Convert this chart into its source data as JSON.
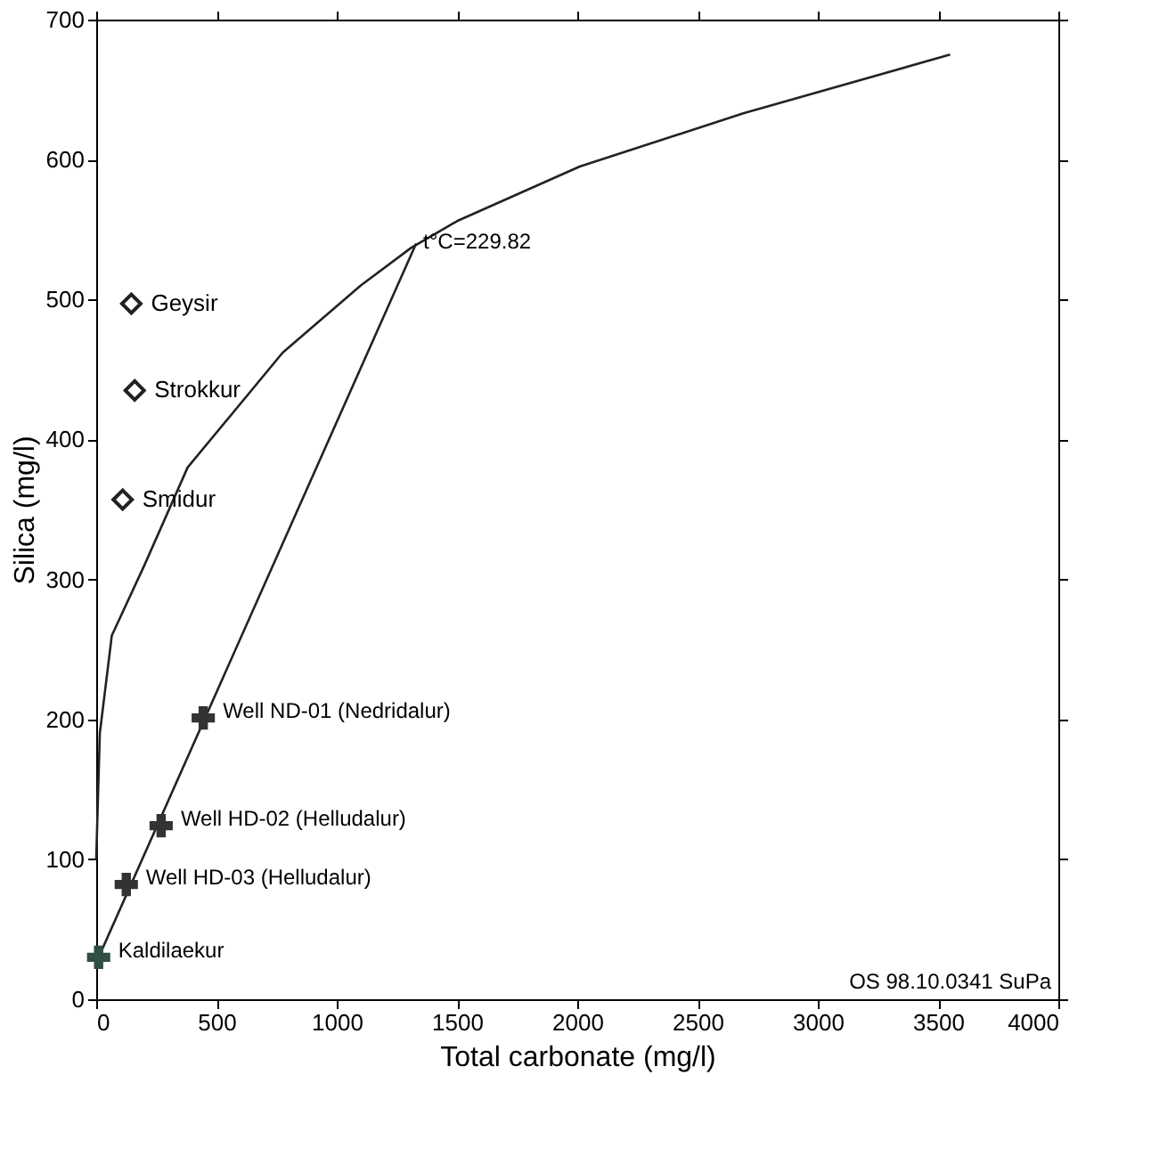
{
  "chart_data": {
    "type": "scatter",
    "xlabel": "Total carbonate (mg/l)",
    "ylabel": "Silica (mg/l)",
    "xlim": [
      0,
      4000
    ],
    "xticks": [
      0,
      500,
      1000,
      1500,
      2000,
      2500,
      3000,
      3500,
      4000
    ],
    "ylim": [
      0,
      700
    ],
    "yticks": [
      0,
      100,
      200,
      300,
      400,
      500,
      600,
      700
    ],
    "grid": false,
    "series": [
      {
        "type": "line",
        "color": "#222222",
        "marker": "none",
        "line_style": "solid",
        "x": [
          0,
          15,
          65,
          200,
          380,
          775,
          1100,
          1310,
          1500,
          2010,
          2690,
          3550
        ],
        "values": [
          100,
          190,
          260,
          310,
          380,
          462,
          510,
          537,
          556,
          595,
          633,
          675
        ]
      },
      {
        "type": "line",
        "color": "#222222",
        "marker": "none",
        "line_style": "solid",
        "x": [
          10,
          1330
        ],
        "values": [
          30,
          540
        ]
      },
      {
        "name": "Geysir",
        "marker": "diamond",
        "color": "#222222",
        "x": [
          146
        ],
        "values": [
          497
        ]
      },
      {
        "name": "Strokkur",
        "marker": "diamond",
        "color": "#222222",
        "x": [
          160
        ],
        "values": [
          435
        ]
      },
      {
        "name": "Smidur",
        "marker": "diamond",
        "color": "#222222",
        "x": [
          110
        ],
        "values": [
          357
        ]
      },
      {
        "name": "Well ND-01 (Nedridalur)",
        "marker": "cross",
        "color": "#333333",
        "x": [
          445
        ],
        "values": [
          201
        ]
      },
      {
        "name": "Well HD-02 (Helludalur)",
        "marker": "cross",
        "color": "#333333",
        "x": [
          270
        ],
        "values": [
          124
        ]
      },
      {
        "name": "Well HD-03 (Helludalur)",
        "marker": "cross",
        "color": "#333333",
        "x": [
          125
        ],
        "values": [
          82
        ]
      },
      {
        "name": "Kaldilaekur",
        "marker": "cross",
        "color": "#2f4f45",
        "x": [
          10
        ],
        "values": [
          30
        ]
      }
    ],
    "annotations": [
      {
        "text": "t°C=229.82",
        "x": 1330,
        "y": 540
      },
      "OS 98.10.0341 SuPa"
    ]
  }
}
